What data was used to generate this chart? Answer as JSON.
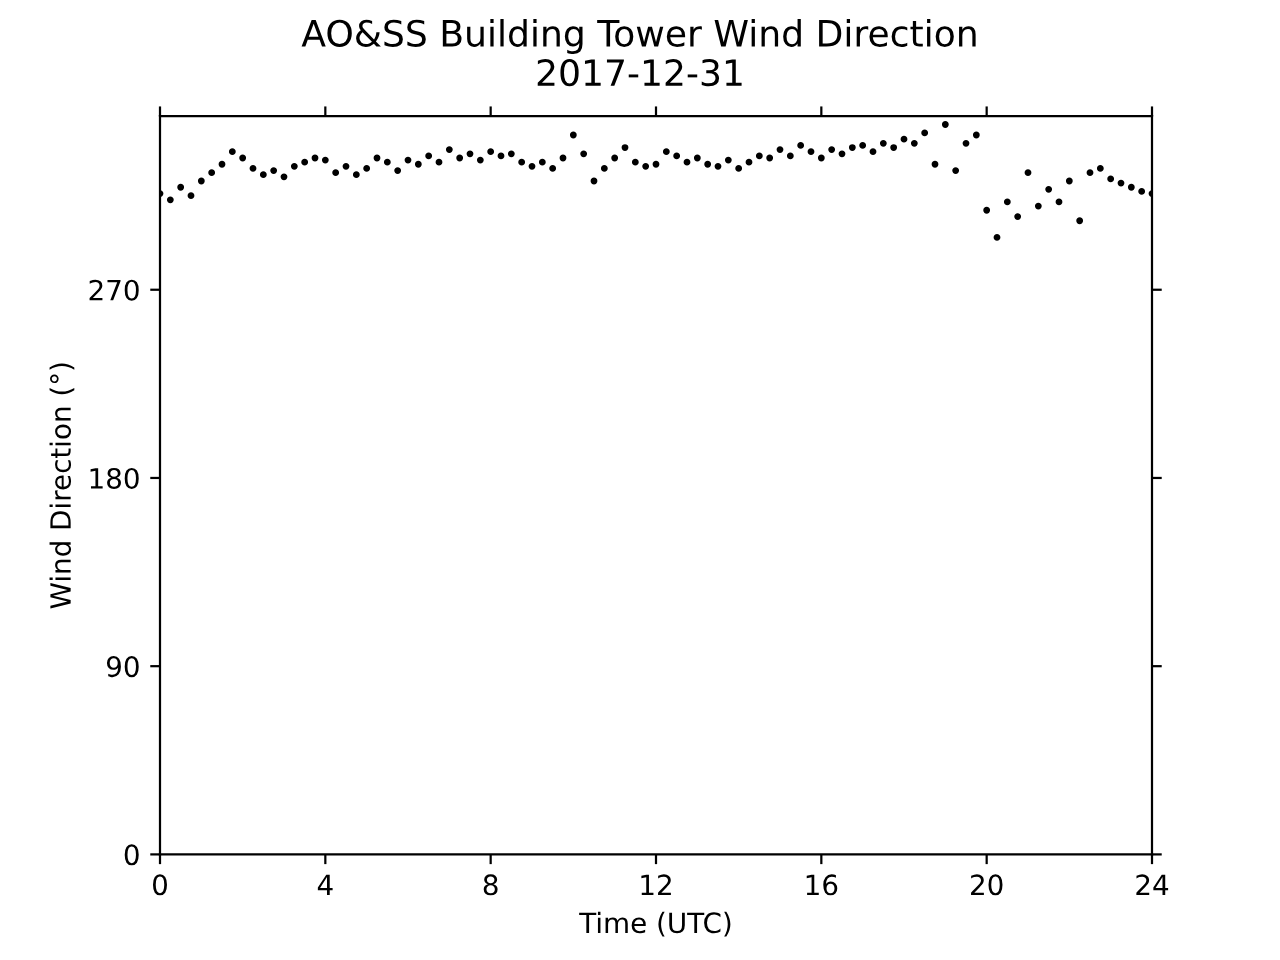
{
  "chart_data": {
    "type": "scatter",
    "title": "AO&SS Building Tower Wind Direction",
    "subtitle": "2017-12-31",
    "xlabel": "Time (UTC)",
    "ylabel": "Wind Direction (°)",
    "x": [
      0,
      0.25,
      0.5,
      0.75,
      1,
      1.25,
      1.5,
      1.75,
      2,
      2.25,
      2.5,
      2.75,
      3,
      3.25,
      3.5,
      3.75,
      4,
      4.25,
      4.5,
      4.75,
      5,
      5.25,
      5.5,
      5.75,
      6,
      6.25,
      6.5,
      6.75,
      7,
      7.25,
      7.5,
      7.75,
      8,
      8.25,
      8.5,
      8.75,
      9,
      9.25,
      9.5,
      9.75,
      10,
      10.25,
      10.5,
      10.75,
      11,
      11.25,
      11.5,
      11.75,
      12,
      12.25,
      12.5,
      12.75,
      13,
      13.25,
      13.5,
      13.75,
      14,
      14.25,
      14.5,
      14.75,
      15,
      15.25,
      15.5,
      15.75,
      16,
      16.25,
      16.5,
      16.75,
      17,
      17.25,
      17.5,
      17.75,
      18,
      18.25,
      18.5,
      18.75,
      19,
      19.25,
      19.5,
      19.75,
      20,
      20.25,
      20.5,
      20.75,
      21,
      21.25,
      21.5,
      21.75,
      22,
      22.25,
      22.5,
      22.75,
      23,
      23.25,
      23.5,
      23.75,
      24
    ],
    "series": [
      {
        "color": "#000000",
        "values": [
          316,
          313,
          319,
          315,
          322,
          326,
          330,
          336,
          333,
          328,
          325,
          327,
          324,
          329,
          331,
          333,
          332,
          326,
          329,
          325,
          328,
          333,
          331,
          327,
          332,
          330,
          334,
          331,
          337,
          333,
          335,
          332,
          336,
          334,
          335,
          331,
          329,
          331,
          328,
          333,
          344,
          335,
          322,
          328,
          333,
          338,
          331,
          329,
          330,
          336,
          334,
          331,
          333,
          330,
          329,
          332,
          328,
          331,
          334,
          333,
          337,
          334,
          339,
          336,
          333,
          337,
          335,
          338,
          339,
          336,
          340,
          338,
          342,
          340,
          345,
          330,
          349,
          327,
          340,
          344,
          308,
          295,
          312,
          305,
          326,
          310,
          318,
          312,
          322,
          303,
          326,
          328,
          323,
          321,
          319,
          317,
          316
        ]
      }
    ],
    "xlim": [
      0,
      24
    ],
    "xticks": [
      0,
      4,
      8,
      12,
      16,
      20,
      24
    ],
    "ylim": [
      0,
      353
    ],
    "yticks": [
      0,
      90,
      180,
      270
    ],
    "marker": "circle",
    "grid": false
  }
}
